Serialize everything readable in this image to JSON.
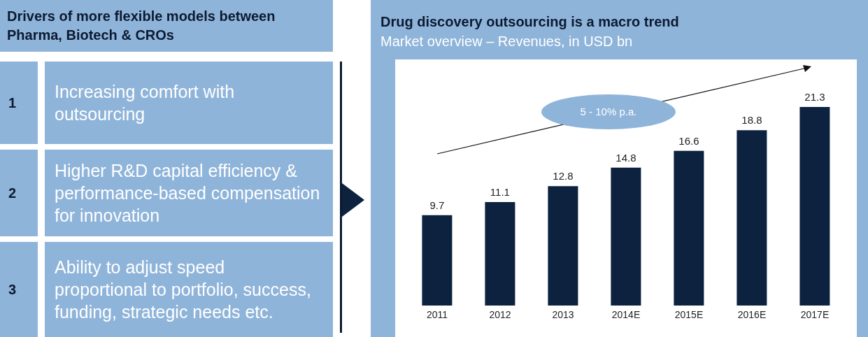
{
  "chart_data": [
    {
      "type": "other",
      "title": "Drivers of more flexible models between Pharma, Biotech & CROs",
      "categories": [
        "1",
        "2",
        "3"
      ],
      "annotations": [
        "Increasing comfort with outsourcing",
        "Higher R&D capital efficiency & performance-based compensation for innovation",
        "Ability to adjust speed proportional to portfolio, success, funding, strategic needs etc."
      ]
    },
    {
      "type": "bar",
      "title": "Drug discovery outsourcing is a macro trend",
      "subtitle": "Market overview – Revenues, in USD bn",
      "categories": [
        "2011",
        "2012",
        "2013",
        "2014E",
        "2015E",
        "2016E",
        "2017E"
      ],
      "values": [
        9.7,
        11.1,
        12.8,
        14.8,
        16.6,
        18.8,
        21.3
      ],
      "color": "#0c223f",
      "data_labels": true,
      "tick_labels": "x",
      "annotations": [
        "5 - 10% p.a."
      ]
    }
  ]
}
